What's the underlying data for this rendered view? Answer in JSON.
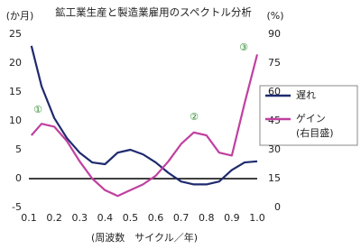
{
  "chart_data": {
    "type": "line",
    "title": "鉱工業生産と製造業雇用のスペクトル分析",
    "xlabel": "(周波数　サイクル／年)",
    "ylabel": "(か月)",
    "y2label": "(%)",
    "y2_note": "(右目盛)",
    "x": [
      0.11,
      0.15,
      0.2,
      0.25,
      0.3,
      0.35,
      0.4,
      0.45,
      0.5,
      0.55,
      0.6,
      0.65,
      0.7,
      0.75,
      0.8,
      0.85,
      0.9,
      0.95,
      1.0
    ],
    "xlim": [
      0.1,
      1.0
    ],
    "xticks": [
      0.1,
      0.2,
      0.3,
      0.4,
      0.5,
      0.6,
      0.7,
      0.8,
      0.9,
      {
        "value": 1,
        "label": "1.0"
      }
    ],
    "ylim": [
      -5,
      25
    ],
    "yticks": [
      -5,
      0,
      5,
      10,
      15,
      20,
      25
    ],
    "y2lim": [
      0,
      90
    ],
    "y2ticks": [
      0,
      15,
      30,
      45,
      60,
      75,
      90
    ],
    "zero_line": true,
    "legend": "right",
    "annotations": [
      "①",
      "②",
      "③"
    ],
    "series": [
      {
        "name": "遅れ",
        "color": "#1f2a6e",
        "values": [
          23,
          16,
          10.5,
          7,
          4.5,
          2.8,
          2.5,
          4.5,
          5,
          4.2,
          2.8,
          1,
          -0.5,
          -1,
          -1,
          -0.5,
          1.5,
          2.8,
          3
        ]
      },
      {
        "name": "ゲイン",
        "color": "#c040a0",
        "axis": "y2",
        "values": [
          37.5,
          43.5,
          42,
          34.5,
          24,
          15,
          9,
          6,
          9,
          12,
          16.5,
          24,
          33,
          39,
          37.5,
          28.5,
          27,
          54,
          79.5
        ]
      }
    ]
  }
}
